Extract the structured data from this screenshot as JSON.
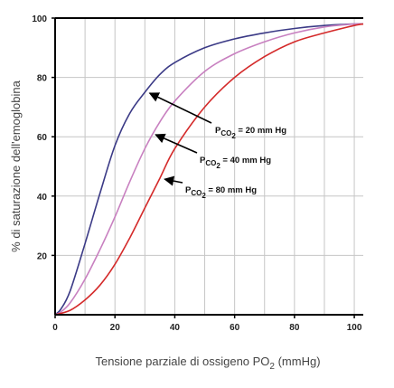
{
  "chart_data": {
    "type": "line",
    "title": "",
    "xlabel": "Tensione parziale di ossigeno PO",
    "xlabel_sub": "2",
    "xlabel_unit": " (mmHg)",
    "ylabel": "% di saturazione dell'emoglobina",
    "xlim": [
      0,
      103
    ],
    "ylim": [
      0,
      100
    ],
    "xticks": [
      "0",
      "20",
      "40",
      "60",
      "80",
      "100"
    ],
    "yticks": [
      "20",
      "40",
      "60",
      "80",
      "100"
    ],
    "grid": true,
    "series": [
      {
        "name": "P CO2 = 20 mm Hg",
        "color": "#3b3a86",
        "x": [
          0,
          2,
          5,
          10,
          15,
          20,
          25,
          30,
          35,
          40,
          50,
          60,
          70,
          80,
          90,
          100,
          103
        ],
        "y": [
          0,
          2,
          8,
          24,
          41,
          57,
          68,
          75,
          81,
          85,
          90,
          93,
          95,
          96.5,
          97.5,
          98,
          98
        ]
      },
      {
        "name": "P CO2 = 40 mm Hg",
        "color": "#c880c0",
        "x": [
          0,
          2,
          5,
          10,
          15,
          20,
          25,
          30,
          35,
          40,
          50,
          60,
          70,
          80,
          90,
          100,
          103
        ],
        "y": [
          0,
          1,
          4,
          12,
          22,
          33,
          45,
          56,
          65,
          72,
          82,
          88,
          92,
          95,
          97,
          98,
          98
        ]
      },
      {
        "name": "P CO2 = 80 mm Hg",
        "color": "#d42a2a",
        "x": [
          0,
          5,
          10,
          15,
          20,
          25,
          30,
          35,
          40,
          50,
          60,
          70,
          80,
          90,
          100,
          103
        ],
        "y": [
          0,
          1.5,
          5,
          10,
          17,
          26,
          36,
          46,
          56,
          70,
          80,
          87,
          92,
          95,
          97.5,
          98
        ]
      }
    ],
    "annotations": [
      {
        "prefix": "P",
        "sub": "CO",
        "subsub": "2",
        "text": " = 20 mm Hg",
        "x": 31,
        "y": 75
      },
      {
        "prefix": "P",
        "sub": "CO",
        "subsub": "2",
        "text": " = 40 mm Hg",
        "x": 33,
        "y": 61
      },
      {
        "prefix": "P",
        "sub": "CO",
        "subsub": "2",
        "text": " = 80 mm Hg",
        "x": 36,
        "y": 46
      }
    ]
  }
}
